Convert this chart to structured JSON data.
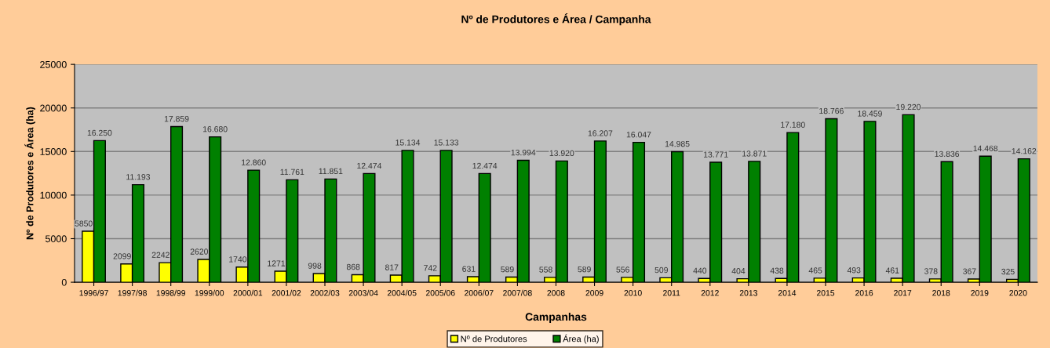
{
  "chart_data": {
    "type": "bar",
    "title": "Nº de Produtores e Área / Campanha",
    "xlabel": "Campanhas",
    "ylabel": "Nº de Produtores e Área (ha)",
    "categories": [
      "1996/97",
      "1997/98",
      "1998/99",
      "1999/00",
      "2000/01",
      "2001/02",
      "2002/03",
      "2003/04",
      "2004/05",
      "2005/06",
      "2006/07",
      "2007/08",
      "2008",
      "2009",
      "2010",
      "2011",
      "2012",
      "2013",
      "2014",
      "2015",
      "2016",
      "2017",
      "2018",
      "2019",
      "2020"
    ],
    "series": [
      {
        "name": "Nº de Produtores",
        "color": "#ffff00",
        "values": [
          5850,
          2099,
          2242,
          2620,
          1740,
          1271,
          998,
          868,
          817,
          742,
          631,
          589,
          558,
          589,
          556,
          509,
          440,
          404,
          438,
          465,
          493,
          461,
          378,
          367,
          325
        ],
        "value_labels": [
          "5850",
          "2099",
          "2242",
          "2620",
          "1740",
          "1271",
          "998",
          "868",
          "817",
          "742",
          "631",
          "589",
          "558",
          "589",
          "556",
          "509",
          "440",
          "404",
          "438",
          "465",
          "493",
          "461",
          "378",
          "367",
          "325"
        ]
      },
      {
        "name": "Área (ha)",
        "color": "#008000",
        "values": [
          16250,
          11193,
          17859,
          16680,
          12860,
          11761,
          11851,
          12474,
          15134,
          15133,
          12474,
          13994,
          13920,
          16207,
          16047,
          14985,
          13771,
          13871,
          17180,
          18766,
          18459,
          19220,
          13836,
          14468,
          14162
        ],
        "value_labels": [
          "16.250",
          "11.193",
          "17.859",
          "16.680",
          "12.860",
          "11.761",
          "11.851",
          "12.474",
          "15.134",
          "15.133",
          "12.474",
          "13.994",
          "13.920",
          "16.207",
          "16.047",
          "14.985",
          "13.771",
          "13.871",
          "17.180",
          "18.766",
          "18.459",
          "19.220",
          "13.836",
          "14.468",
          "14.162"
        ]
      }
    ],
    "ylim": [
      0,
      25000
    ],
    "yticks": [
      0,
      5000,
      10000,
      15000,
      20000,
      25000
    ],
    "grid": "y",
    "legend": "bottom"
  }
}
